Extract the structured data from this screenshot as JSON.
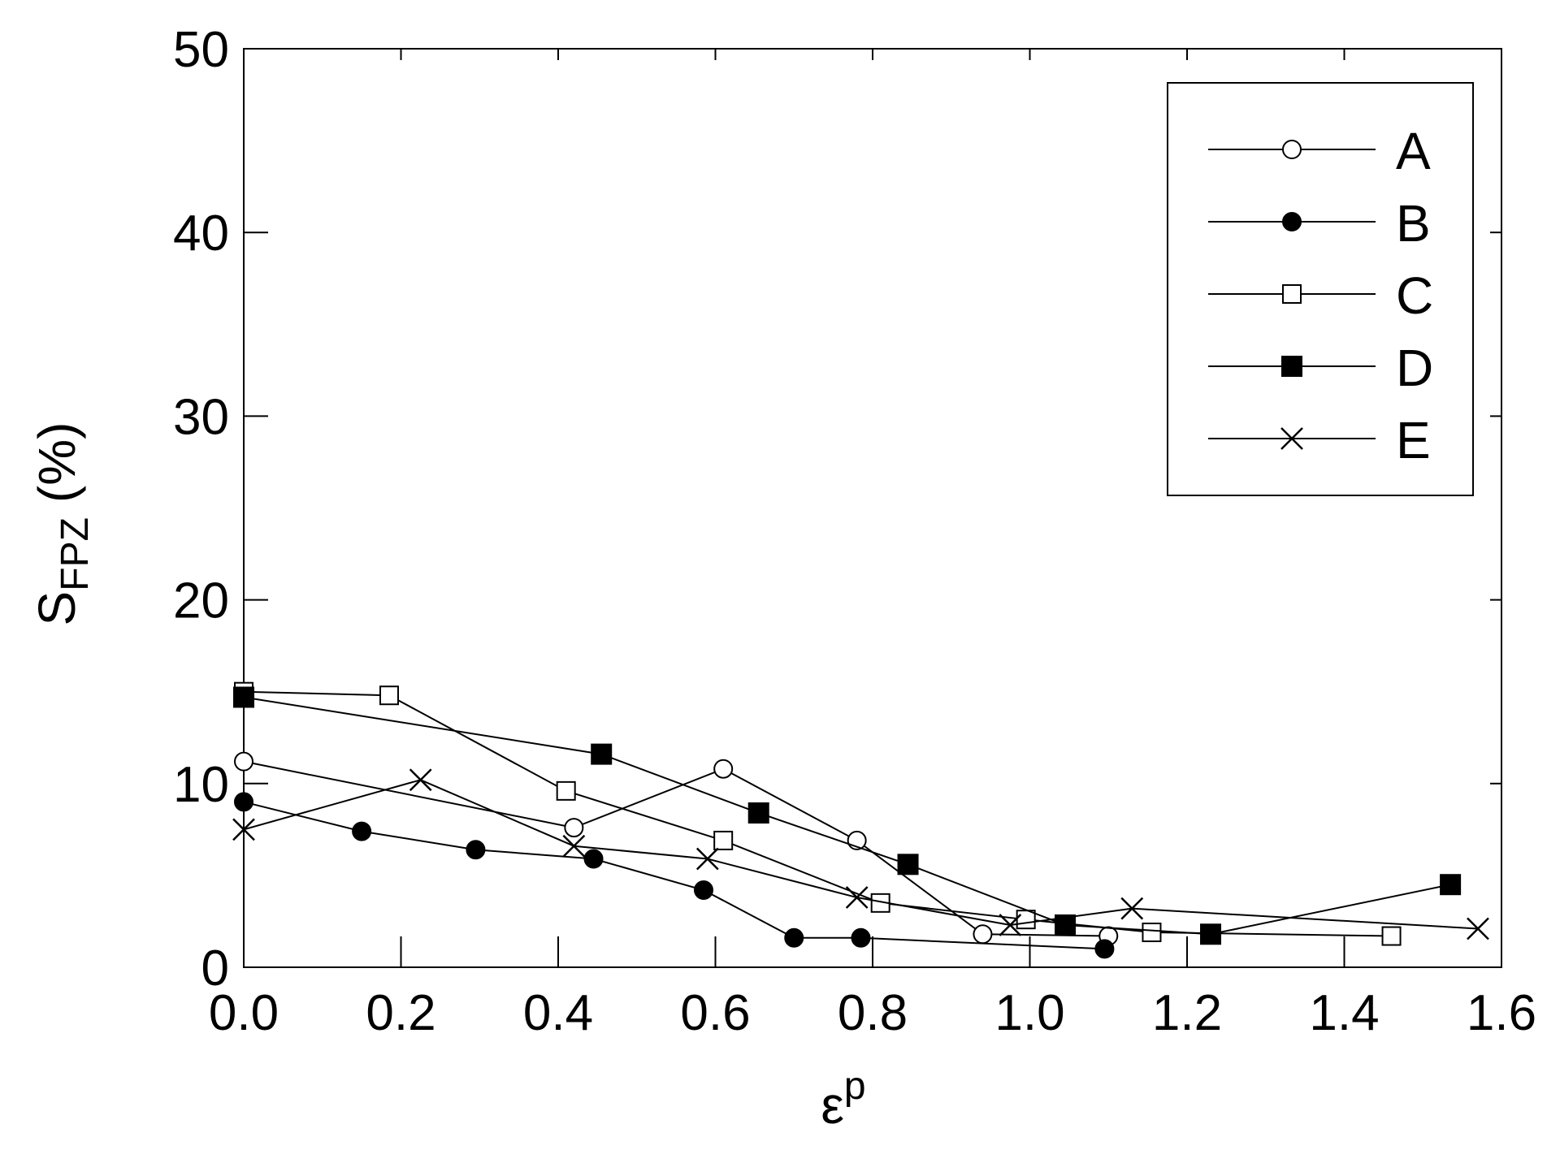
{
  "chart_data": {
    "type": "line",
    "xlabel": "ε",
    "xlabel_sup": "p",
    "ylabel": "S",
    "ylabel_sub": "FPZ",
    "ylabel_unit": "(%)",
    "xlim": [
      0,
      1.6
    ],
    "ylim": [
      0,
      50
    ],
    "xticks": [
      0.0,
      0.2,
      0.4,
      0.6,
      0.8,
      1.0,
      1.2,
      1.4,
      1.6
    ],
    "xtick_labels": [
      "0.0",
      "0.2",
      "0.4",
      "0.6",
      "0.8",
      "1.0",
      "1.2",
      "1.4",
      "1.6"
    ],
    "yticks": [
      0,
      10,
      20,
      30,
      40,
      50
    ],
    "ytick_labels": [
      "0",
      "10",
      "20",
      "30",
      "40",
      "50"
    ],
    "grid": false,
    "legend_position": "top-right",
    "series": [
      {
        "name": "A",
        "marker": "open-circle",
        "x": [
          0.0,
          0.42,
          0.61,
          0.78,
          0.94,
          1.1
        ],
        "y": [
          11.2,
          7.6,
          10.8,
          6.9,
          1.8,
          1.7
        ]
      },
      {
        "name": "B",
        "marker": "filled-circle",
        "x": [
          0.0,
          0.15,
          0.295,
          0.445,
          0.585,
          0.7,
          0.785,
          1.095
        ],
        "y": [
          9.0,
          7.4,
          6.4,
          5.9,
          4.2,
          1.6,
          1.6,
          1.0
        ]
      },
      {
        "name": "C",
        "marker": "open-square",
        "x": [
          0.0,
          0.185,
          0.41,
          0.61,
          0.81,
          0.995,
          1.155,
          1.46
        ],
        "y": [
          15.0,
          14.8,
          9.6,
          6.9,
          3.5,
          2.6,
          1.9,
          1.7
        ]
      },
      {
        "name": "D",
        "marker": "filled-square",
        "x": [
          0.0,
          0.455,
          0.655,
          0.845,
          1.045,
          1.23,
          1.535
        ],
        "y": [
          14.7,
          11.6,
          8.4,
          5.6,
          2.3,
          1.8,
          4.5
        ]
      },
      {
        "name": "E",
        "marker": "cross",
        "x": [
          0.0,
          0.225,
          0.42,
          0.59,
          0.78,
          0.975,
          1.13,
          1.57
        ],
        "y": [
          7.5,
          10.2,
          6.6,
          5.9,
          3.8,
          2.3,
          3.2,
          2.1
        ]
      }
    ]
  }
}
